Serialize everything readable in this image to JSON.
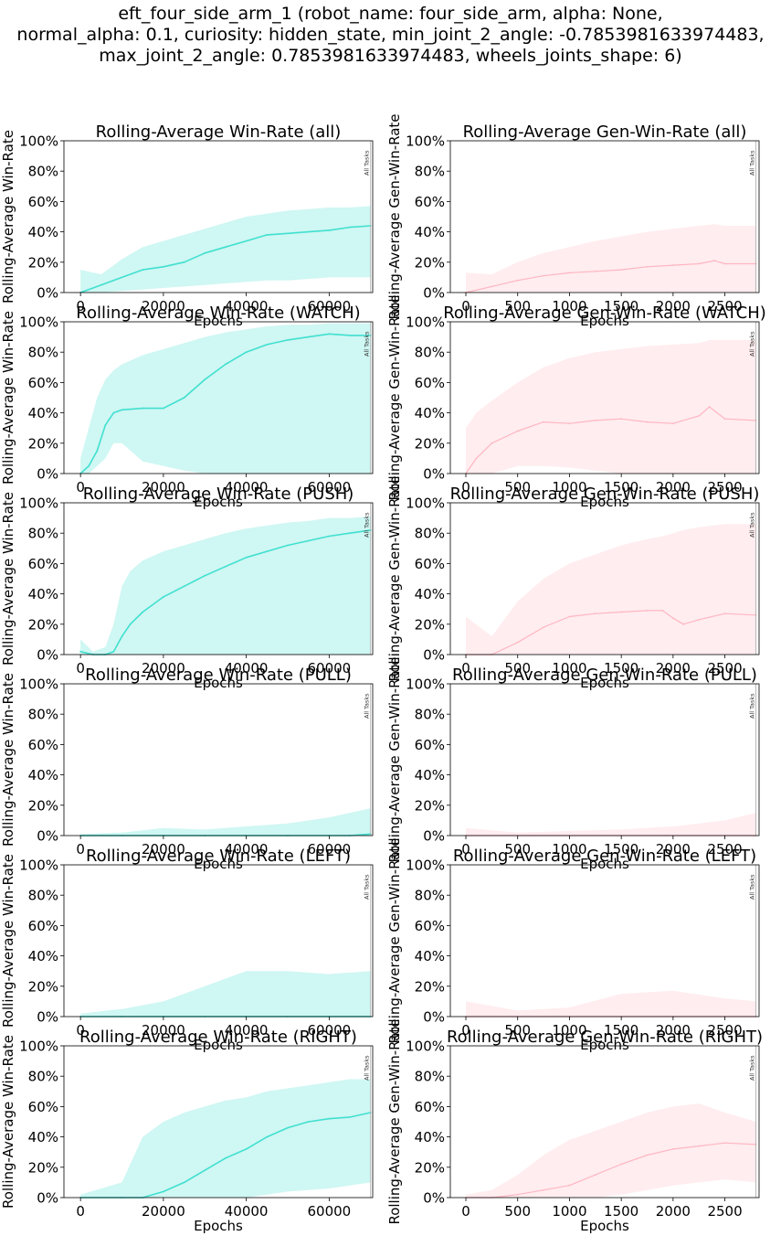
{
  "figure": {
    "suptitle_lines": [
      "eft_four_side_arm_1 (robot_name: four_side_arm, alpha: None,",
      "normal_alpha: 0.1, curiosity: hidden_state, min_joint_2_angle: -0.7853981633974483,",
      "max_joint_2_angle: 0.7853981633974483, wheels_joints_shape: 6)"
    ],
    "colors": {
      "win_line": "#40e0d0",
      "win_band": "#40e0d0",
      "gen_line": "#ffb6c1",
      "gen_band": "#ffb6c1",
      "marker": "#aaaaaa"
    }
  },
  "chart_data": [
    {
      "type": "line",
      "panel": "win-all",
      "title": "Rolling-Average Win-Rate (all)",
      "xlabel": "Epochs",
      "ylabel": "Rolling-Average Win-Rate",
      "xlim": [
        -4000,
        70500
      ],
      "ylim": [
        0,
        1
      ],
      "xticks": [
        0,
        20000,
        40000,
        60000
      ],
      "yticks": [
        "0%",
        "20%",
        "40%",
        "60%",
        "80%",
        "100%"
      ],
      "marker": {
        "x": 70000,
        "label": "All Tasks"
      },
      "x": [
        0,
        5000,
        10000,
        15000,
        20000,
        25000,
        30000,
        35000,
        40000,
        45000,
        50000,
        55000,
        60000,
        65000,
        70000
      ],
      "y": [
        0.0,
        0.05,
        0.1,
        0.15,
        0.17,
        0.2,
        0.26,
        0.3,
        0.34,
        0.38,
        0.39,
        0.4,
        0.41,
        0.43,
        0.44
      ],
      "lower": [
        0.0,
        0.0,
        0.01,
        0.02,
        0.03,
        0.04,
        0.05,
        0.06,
        0.07,
        0.08,
        0.08,
        0.09,
        0.1,
        0.1,
        0.1
      ],
      "upper": [
        0.15,
        0.12,
        0.22,
        0.3,
        0.34,
        0.38,
        0.42,
        0.46,
        0.5,
        0.52,
        0.54,
        0.55,
        0.56,
        0.56,
        0.57
      ]
    },
    {
      "type": "line",
      "panel": "gen-all",
      "title": "Rolling-Average Gen-Win-Rate (all)",
      "xlabel": "Epochs",
      "ylabel": "Rolling-Average Gen-Win-Rate",
      "xlim": [
        -150,
        2830
      ],
      "ylim": [
        0,
        1
      ],
      "xticks": [
        0,
        500,
        1000,
        1500,
        2000,
        2500
      ],
      "yticks": [
        "0%",
        "20%",
        "40%",
        "60%",
        "80%",
        "100%"
      ],
      "marker": {
        "x": 2800,
        "label": "All Tasks"
      },
      "x": [
        0,
        250,
        500,
        750,
        1000,
        1250,
        1500,
        1750,
        2000,
        2250,
        2400,
        2500,
        2800
      ],
      "y": [
        0.0,
        0.04,
        0.08,
        0.11,
        0.13,
        0.14,
        0.15,
        0.17,
        0.18,
        0.19,
        0.21,
        0.19,
        0.19
      ],
      "lower": [
        0.0,
        0.0,
        0.0,
        0.0,
        0.0,
        0.0,
        0.0,
        0.0,
        0.0,
        0.0,
        0.0,
        0.0,
        0.0
      ],
      "upper": [
        0.13,
        0.12,
        0.2,
        0.26,
        0.3,
        0.34,
        0.37,
        0.4,
        0.42,
        0.44,
        0.45,
        0.44,
        0.44
      ]
    },
    {
      "type": "line",
      "panel": "win-watch",
      "title": "Rolling-Average Win-Rate (WATCH)",
      "xlabel": "Epochs",
      "ylabel": "Rolling-Average Win-Rate",
      "xlim": [
        -4000,
        70500
      ],
      "ylim": [
        0,
        1
      ],
      "xticks": [
        0,
        20000,
        40000,
        60000
      ],
      "yticks": [
        "0%",
        "20%",
        "40%",
        "60%",
        "80%",
        "100%"
      ],
      "marker": {
        "x": 70000,
        "label": "All Tasks"
      },
      "x": [
        0,
        2000,
        4000,
        6000,
        8000,
        10000,
        15000,
        20000,
        25000,
        30000,
        35000,
        40000,
        45000,
        50000,
        55000,
        60000,
        65000,
        70000
      ],
      "y": [
        0.0,
        0.05,
        0.15,
        0.32,
        0.4,
        0.42,
        0.43,
        0.43,
        0.5,
        0.62,
        0.72,
        0.8,
        0.85,
        0.88,
        0.9,
        0.92,
        0.91,
        0.91
      ],
      "lower": [
        0.0,
        0.0,
        0.05,
        0.1,
        0.2,
        0.2,
        0.08,
        0.05,
        0.02,
        0.0,
        0.0,
        0.0,
        0.0,
        0.0,
        0.0,
        0.0,
        0.0,
        0.0
      ],
      "upper": [
        0.1,
        0.3,
        0.5,
        0.62,
        0.68,
        0.72,
        0.78,
        0.82,
        0.86,
        0.9,
        0.93,
        0.95,
        0.97,
        0.98,
        0.98,
        0.99,
        0.99,
        0.99
      ]
    },
    {
      "type": "line",
      "panel": "gen-watch",
      "title": "Rolling-Average Gen-Win-Rate (WATCH)",
      "xlabel": "Epochs",
      "ylabel": "Rolling-Average Gen-Win-Rate",
      "xlim": [
        -150,
        2830
      ],
      "ylim": [
        0,
        1
      ],
      "xticks": [
        0,
        500,
        1000,
        1500,
        2000,
        2500
      ],
      "yticks": [
        "0%",
        "20%",
        "40%",
        "60%",
        "80%",
        "100%"
      ],
      "marker": {
        "x": 2800,
        "label": "All Tasks"
      },
      "x": [
        0,
        100,
        250,
        500,
        750,
        1000,
        1250,
        1500,
        1750,
        2000,
        2250,
        2350,
        2500,
        2800
      ],
      "y": [
        0.0,
        0.1,
        0.2,
        0.28,
        0.34,
        0.33,
        0.35,
        0.36,
        0.34,
        0.33,
        0.38,
        0.44,
        0.36,
        0.35
      ],
      "lower": [
        0.0,
        0.0,
        0.0,
        0.05,
        0.05,
        0.04,
        0.02,
        0.0,
        0.0,
        0.0,
        0.0,
        0.0,
        0.0,
        0.0
      ],
      "upper": [
        0.3,
        0.4,
        0.48,
        0.6,
        0.7,
        0.76,
        0.8,
        0.82,
        0.84,
        0.85,
        0.86,
        0.88,
        0.88,
        0.88
      ]
    },
    {
      "type": "line",
      "panel": "win-push",
      "title": "Rolling-Average Win-Rate (PUSH)",
      "xlabel": "Epochs",
      "ylabel": "Rolling-Average Win-Rate",
      "xlim": [
        -4000,
        70500
      ],
      "ylim": [
        0,
        1
      ],
      "xticks": [
        0,
        20000,
        40000,
        60000
      ],
      "yticks": [
        "0%",
        "20%",
        "40%",
        "60%",
        "80%",
        "100%"
      ],
      "marker": {
        "x": 70000,
        "label": "All Tasks"
      },
      "x": [
        0,
        3000,
        6000,
        8000,
        10000,
        12000,
        15000,
        20000,
        25000,
        30000,
        35000,
        40000,
        45000,
        50000,
        55000,
        60000,
        65000,
        70000
      ],
      "y": [
        0.02,
        0.0,
        0.0,
        0.02,
        0.12,
        0.2,
        0.28,
        0.38,
        0.45,
        0.52,
        0.58,
        0.64,
        0.68,
        0.72,
        0.75,
        0.78,
        0.8,
        0.82
      ],
      "lower": [
        0.0,
        0.0,
        0.0,
        0.0,
        0.0,
        0.0,
        0.0,
        0.0,
        0.0,
        0.0,
        0.0,
        0.0,
        0.0,
        0.0,
        0.0,
        0.0,
        0.0,
        0.0
      ],
      "upper": [
        0.1,
        0.02,
        0.05,
        0.2,
        0.45,
        0.55,
        0.62,
        0.68,
        0.72,
        0.76,
        0.8,
        0.83,
        0.85,
        0.87,
        0.88,
        0.9,
        0.9,
        0.91
      ]
    },
    {
      "type": "line",
      "panel": "gen-push",
      "title": "Rolling-Average Gen-Win-Rate (PUSH)",
      "xlabel": "Epochs",
      "ylabel": "Rolling-Average Gen-Win-Rate",
      "xlim": [
        -150,
        2830
      ],
      "ylim": [
        0,
        1
      ],
      "xticks": [
        0,
        500,
        1000,
        1500,
        2000,
        2500
      ],
      "yticks": [
        "0%",
        "20%",
        "40%",
        "60%",
        "80%",
        "100%"
      ],
      "marker": {
        "x": 2800,
        "label": "All Tasks"
      },
      "x": [
        0,
        250,
        500,
        750,
        1000,
        1250,
        1500,
        1750,
        1900,
        2000,
        2100,
        2250,
        2500,
        2800
      ],
      "y": [
        0.0,
        0.0,
        0.08,
        0.18,
        0.25,
        0.27,
        0.28,
        0.29,
        0.29,
        0.24,
        0.2,
        0.23,
        0.27,
        0.26
      ],
      "lower": [
        0.0,
        0.0,
        0.0,
        0.0,
        0.0,
        0.0,
        0.0,
        0.0,
        0.0,
        0.0,
        0.0,
        0.0,
        0.0,
        0.0
      ],
      "upper": [
        0.25,
        0.12,
        0.35,
        0.5,
        0.6,
        0.66,
        0.72,
        0.76,
        0.78,
        0.8,
        0.82,
        0.84,
        0.86,
        0.86
      ]
    },
    {
      "type": "line",
      "panel": "win-pull",
      "title": "Rolling-Average Win-Rate (PULL)",
      "xlabel": "Epochs",
      "ylabel": "Rolling-Average Win-Rate",
      "xlim": [
        -4000,
        70500
      ],
      "ylim": [
        0,
        1
      ],
      "xticks": [
        0,
        20000,
        40000,
        60000
      ],
      "yticks": [
        "0%",
        "20%",
        "40%",
        "60%",
        "80%",
        "100%"
      ],
      "marker": {
        "x": 70000,
        "label": "All Tasks"
      },
      "x": [
        0,
        10000,
        20000,
        30000,
        40000,
        50000,
        60000,
        65000,
        70000
      ],
      "y": [
        0.0,
        0.0,
        0.0,
        0.0,
        0.0,
        0.0,
        0.0,
        0.0,
        0.01
      ],
      "lower": [
        0.0,
        0.0,
        0.0,
        0.0,
        0.0,
        0.0,
        0.0,
        0.0,
        0.0
      ],
      "upper": [
        0.01,
        0.02,
        0.05,
        0.04,
        0.06,
        0.08,
        0.12,
        0.15,
        0.18
      ]
    },
    {
      "type": "line",
      "panel": "gen-pull",
      "title": "Rolling-Average Gen-Win-Rate (PULL)",
      "xlabel": "Epochs",
      "ylabel": "Rolling-Average Gen-Win-Rate",
      "xlim": [
        -150,
        2830
      ],
      "ylim": [
        0,
        1
      ],
      "xticks": [
        0,
        500,
        1000,
        1500,
        2000,
        2500
      ],
      "yticks": [
        "0%",
        "20%",
        "40%",
        "60%",
        "80%",
        "100%"
      ],
      "marker": {
        "x": 2800,
        "label": "All Tasks"
      },
      "x": [
        0,
        500,
        1000,
        1500,
        2000,
        2500,
        2800
      ],
      "y": [
        0.0,
        0.0,
        0.0,
        0.0,
        0.0,
        0.0,
        0.0
      ],
      "lower": [
        0.0,
        0.0,
        0.0,
        0.0,
        0.0,
        0.0,
        0.0
      ],
      "upper": [
        0.05,
        0.02,
        0.03,
        0.04,
        0.06,
        0.1,
        0.15
      ]
    },
    {
      "type": "line",
      "panel": "win-left",
      "title": "Rolling-Average Win-Rate (LEFT)",
      "xlabel": "Epochs",
      "ylabel": "Rolling-Average Win-Rate",
      "xlim": [
        -4000,
        70500
      ],
      "ylim": [
        0,
        1
      ],
      "xticks": [
        0,
        20000,
        40000,
        60000
      ],
      "yticks": [
        "0%",
        "20%",
        "40%",
        "60%",
        "80%",
        "100%"
      ],
      "marker": {
        "x": 70000,
        "label": "All Tasks"
      },
      "x": [
        0,
        10000,
        20000,
        30000,
        40000,
        50000,
        60000,
        70000
      ],
      "y": [
        0.0,
        0.0,
        0.0,
        0.0,
        0.0,
        0.0,
        0.0,
        0.0
      ],
      "lower": [
        0.0,
        0.0,
        0.0,
        0.0,
        0.0,
        0.0,
        0.0,
        0.0
      ],
      "upper": [
        0.02,
        0.05,
        0.1,
        0.2,
        0.3,
        0.3,
        0.28,
        0.3
      ]
    },
    {
      "type": "line",
      "panel": "gen-left",
      "title": "Rolling-Average Gen-Win-Rate (LEFT)",
      "xlabel": "Epochs",
      "ylabel": "Rolling-Average Gen-Win-Rate",
      "xlim": [
        -150,
        2830
      ],
      "ylim": [
        0,
        1
      ],
      "xticks": [
        0,
        500,
        1000,
        1500,
        2000,
        2500
      ],
      "yticks": [
        "0%",
        "20%",
        "40%",
        "60%",
        "80%",
        "100%"
      ],
      "marker": {
        "x": 2800,
        "label": "All Tasks"
      },
      "x": [
        0,
        500,
        1000,
        1500,
        2000,
        2500,
        2800
      ],
      "y": [
        0.0,
        0.0,
        0.0,
        0.0,
        0.0,
        0.0,
        0.0
      ],
      "lower": [
        0.0,
        0.0,
        0.0,
        0.0,
        0.0,
        0.0,
        0.0
      ],
      "upper": [
        0.1,
        0.04,
        0.06,
        0.15,
        0.17,
        0.12,
        0.1
      ]
    },
    {
      "type": "line",
      "panel": "win-right",
      "title": "Rolling-Average Win-Rate (RIGHT)",
      "xlabel": "Epochs",
      "ylabel": "Rolling-Average Win-Rate",
      "xlim": [
        -4000,
        70500
      ],
      "ylim": [
        0,
        1
      ],
      "xticks": [
        0,
        20000,
        40000,
        60000
      ],
      "yticks": [
        "0%",
        "20%",
        "40%",
        "60%",
        "80%",
        "100%"
      ],
      "marker": {
        "x": 70000,
        "label": "All Tasks"
      },
      "x": [
        0,
        10000,
        15000,
        20000,
        25000,
        30000,
        35000,
        40000,
        45000,
        50000,
        55000,
        60000,
        65000,
        70000
      ],
      "y": [
        0.0,
        0.0,
        0.0,
        0.04,
        0.1,
        0.18,
        0.26,
        0.32,
        0.4,
        0.46,
        0.5,
        0.52,
        0.53,
        0.56
      ],
      "lower": [
        0.0,
        0.0,
        0.0,
        0.0,
        0.0,
        0.0,
        0.0,
        0.0,
        0.02,
        0.04,
        0.05,
        0.06,
        0.08,
        0.1
      ],
      "upper": [
        0.02,
        0.1,
        0.4,
        0.5,
        0.56,
        0.6,
        0.64,
        0.66,
        0.7,
        0.72,
        0.74,
        0.76,
        0.78,
        0.78
      ]
    },
    {
      "type": "line",
      "panel": "gen-right",
      "title": "Rolling-Average Gen-Win-Rate (RIGHT)",
      "xlabel": "Epochs",
      "ylabel": "Rolling-Average Gen-Win-Rate",
      "xlim": [
        -150,
        2830
      ],
      "ylim": [
        0,
        1
      ],
      "xticks": [
        0,
        500,
        1000,
        1500,
        2000,
        2500
      ],
      "yticks": [
        "0%",
        "20%",
        "40%",
        "60%",
        "80%",
        "100%"
      ],
      "marker": {
        "x": 2800,
        "label": "All Tasks"
      },
      "x": [
        0,
        250,
        500,
        750,
        1000,
        1250,
        1500,
        1750,
        2000,
        2250,
        2500,
        2800
      ],
      "y": [
        0.0,
        0.0,
        0.02,
        0.05,
        0.08,
        0.15,
        0.22,
        0.28,
        0.32,
        0.34,
        0.36,
        0.35
      ],
      "lower": [
        0.0,
        0.0,
        0.0,
        0.0,
        0.0,
        0.0,
        0.02,
        0.05,
        0.08,
        0.1,
        0.12,
        0.1
      ],
      "upper": [
        0.02,
        0.05,
        0.15,
        0.28,
        0.38,
        0.44,
        0.5,
        0.56,
        0.6,
        0.62,
        0.56,
        0.5
      ]
    }
  ]
}
